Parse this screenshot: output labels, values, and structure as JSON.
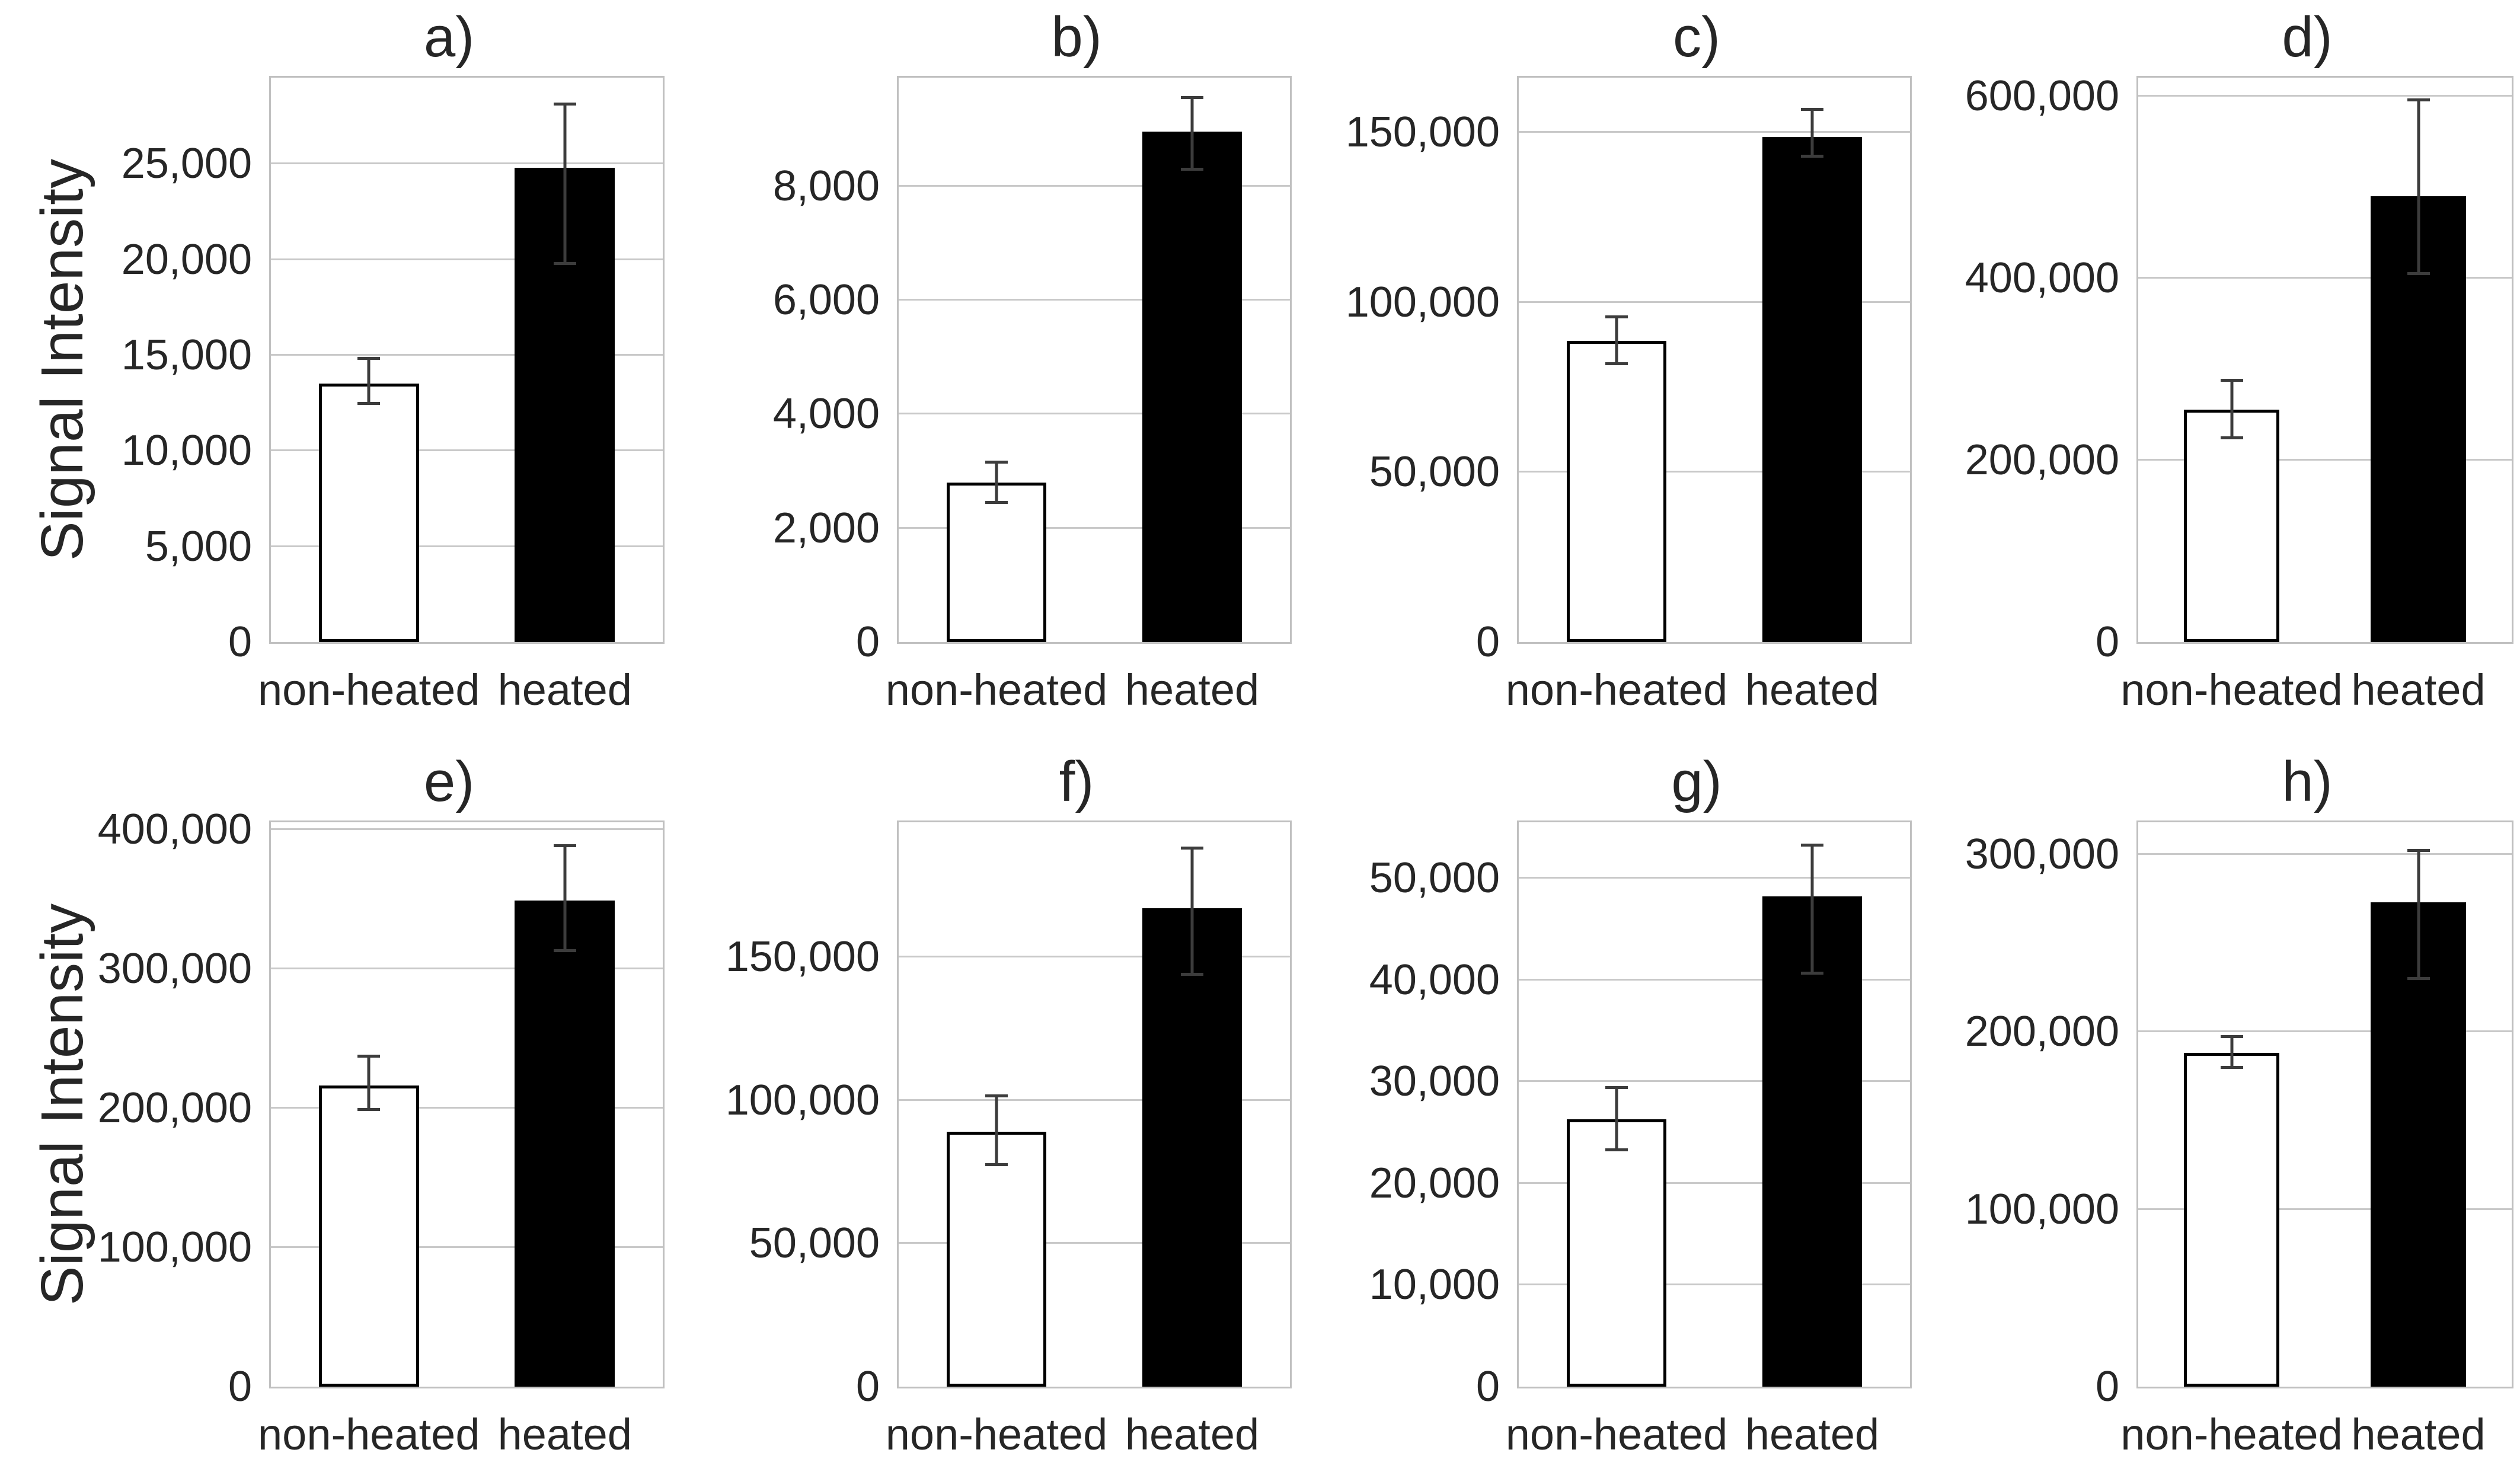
{
  "figure": {
    "y_axis_title": "Signal Intensity",
    "categories": [
      "non-heated",
      "heated"
    ],
    "bar_styles": {
      "non-heated": {
        "fill": "#ffffff",
        "border": "#000000"
      },
      "heated": {
        "fill": "#000000",
        "border": "#000000"
      }
    },
    "colors": {
      "gridline": "#c9c9c9",
      "plot_border": "#c0c0c0",
      "error_bar": "#3c3c3c",
      "text": "#262626",
      "background": "#ffffff"
    }
  },
  "chart_data": [
    {
      "id": "a",
      "panel": "a)",
      "type": "bar",
      "categories": [
        "non-heated",
        "heated"
      ],
      "values": [
        13500,
        24800
      ],
      "error_low": [
        12500,
        19800
      ],
      "error_high": [
        14800,
        28100
      ],
      "ylabel": "Signal Intensity",
      "yticks": [
        0,
        5000,
        10000,
        15000,
        20000,
        25000
      ],
      "ytick_labels": [
        "0",
        "5,000",
        "10,000",
        "15,000",
        "20,000",
        "25,000"
      ],
      "ylim": [
        0,
        29500
      ],
      "grid": true,
      "legend": false
    },
    {
      "id": "b",
      "panel": "b)",
      "type": "bar",
      "categories": [
        "non-heated",
        "heated"
      ],
      "values": [
        2800,
        8950
      ],
      "error_low": [
        2450,
        8300
      ],
      "error_high": [
        3150,
        9550
      ],
      "ylabel": "",
      "yticks": [
        0,
        2000,
        4000,
        6000,
        8000
      ],
      "ytick_labels": [
        "0",
        "2,000",
        "4,000",
        "6,000",
        "8,000"
      ],
      "ylim": [
        0,
        9900
      ],
      "grid": true,
      "legend": false
    },
    {
      "id": "c",
      "panel": "c)",
      "type": "bar",
      "categories": [
        "non-heated",
        "heated"
      ],
      "values": [
        88500,
        148500
      ],
      "error_low": [
        82000,
        143000
      ],
      "error_high": [
        95500,
        156500
      ],
      "ylabel": "",
      "yticks": [
        0,
        50000,
        100000,
        150000
      ],
      "ytick_labels": [
        "0",
        "50,000",
        "100,000",
        "150,000"
      ],
      "ylim": [
        0,
        166000
      ],
      "grid": true,
      "legend": false
    },
    {
      "id": "d",
      "panel": "d)",
      "type": "bar",
      "categories": [
        "non-heated",
        "heated"
      ],
      "values": [
        255000,
        490000
      ],
      "error_low": [
        225000,
        405000
      ],
      "error_high": [
        287000,
        595000
      ],
      "ylabel": "",
      "yticks": [
        0,
        200000,
        400000,
        600000
      ],
      "ytick_labels": [
        "0",
        "200,000",
        "400,000",
        "600,000"
      ],
      "ylim": [
        0,
        620000
      ],
      "grid": true,
      "legend": false
    },
    {
      "id": "e",
      "panel": "e)",
      "type": "bar",
      "categories": [
        "non-heated",
        "heated"
      ],
      "values": [
        216000,
        349000
      ],
      "error_low": [
        199000,
        313000
      ],
      "error_high": [
        237000,
        388000
      ],
      "ylabel": "Signal Intensity",
      "yticks": [
        0,
        100000,
        200000,
        300000,
        400000
      ],
      "ytick_labels": [
        "0",
        "100,000",
        "200,000",
        "300,000",
        "400,000"
      ],
      "ylim": [
        0,
        405000
      ],
      "grid": true,
      "legend": false
    },
    {
      "id": "f",
      "panel": "f)",
      "type": "bar",
      "categories": [
        "non-heated",
        "heated"
      ],
      "values": [
        89000,
        167000
      ],
      "error_low": [
        77500,
        144000
      ],
      "error_high": [
        101500,
        188000
      ],
      "ylabel": "",
      "yticks": [
        0,
        50000,
        100000,
        150000
      ],
      "ytick_labels": [
        "0",
        "50,000",
        "100,000",
        "150,000"
      ],
      "ylim": [
        0,
        197000
      ],
      "grid": true,
      "legend": false
    },
    {
      "id": "g",
      "panel": "g)",
      "type": "bar",
      "categories": [
        "non-heated",
        "heated"
      ],
      "values": [
        26300,
        48200
      ],
      "error_low": [
        23300,
        40700
      ],
      "error_high": [
        29400,
        53200
      ],
      "ylabel": "",
      "yticks": [
        0,
        10000,
        20000,
        30000,
        40000,
        50000
      ],
      "ytick_labels": [
        "0",
        "10,000",
        "20,000",
        "30,000",
        "40,000",
        "50,000"
      ],
      "ylim": [
        0,
        55500
      ],
      "grid": true,
      "legend": false
    },
    {
      "id": "h",
      "panel": "h)",
      "type": "bar",
      "categories": [
        "non-heated",
        "heated"
      ],
      "values": [
        188000,
        273000
      ],
      "error_low": [
        180000,
        230000
      ],
      "error_high": [
        197000,
        302000
      ],
      "ylabel": "",
      "yticks": [
        0,
        100000,
        200000,
        300000
      ],
      "ytick_labels": [
        "0",
        "100,000",
        "200,000",
        "300,000"
      ],
      "ylim": [
        0,
        318000
      ],
      "grid": true,
      "legend": false
    }
  ]
}
